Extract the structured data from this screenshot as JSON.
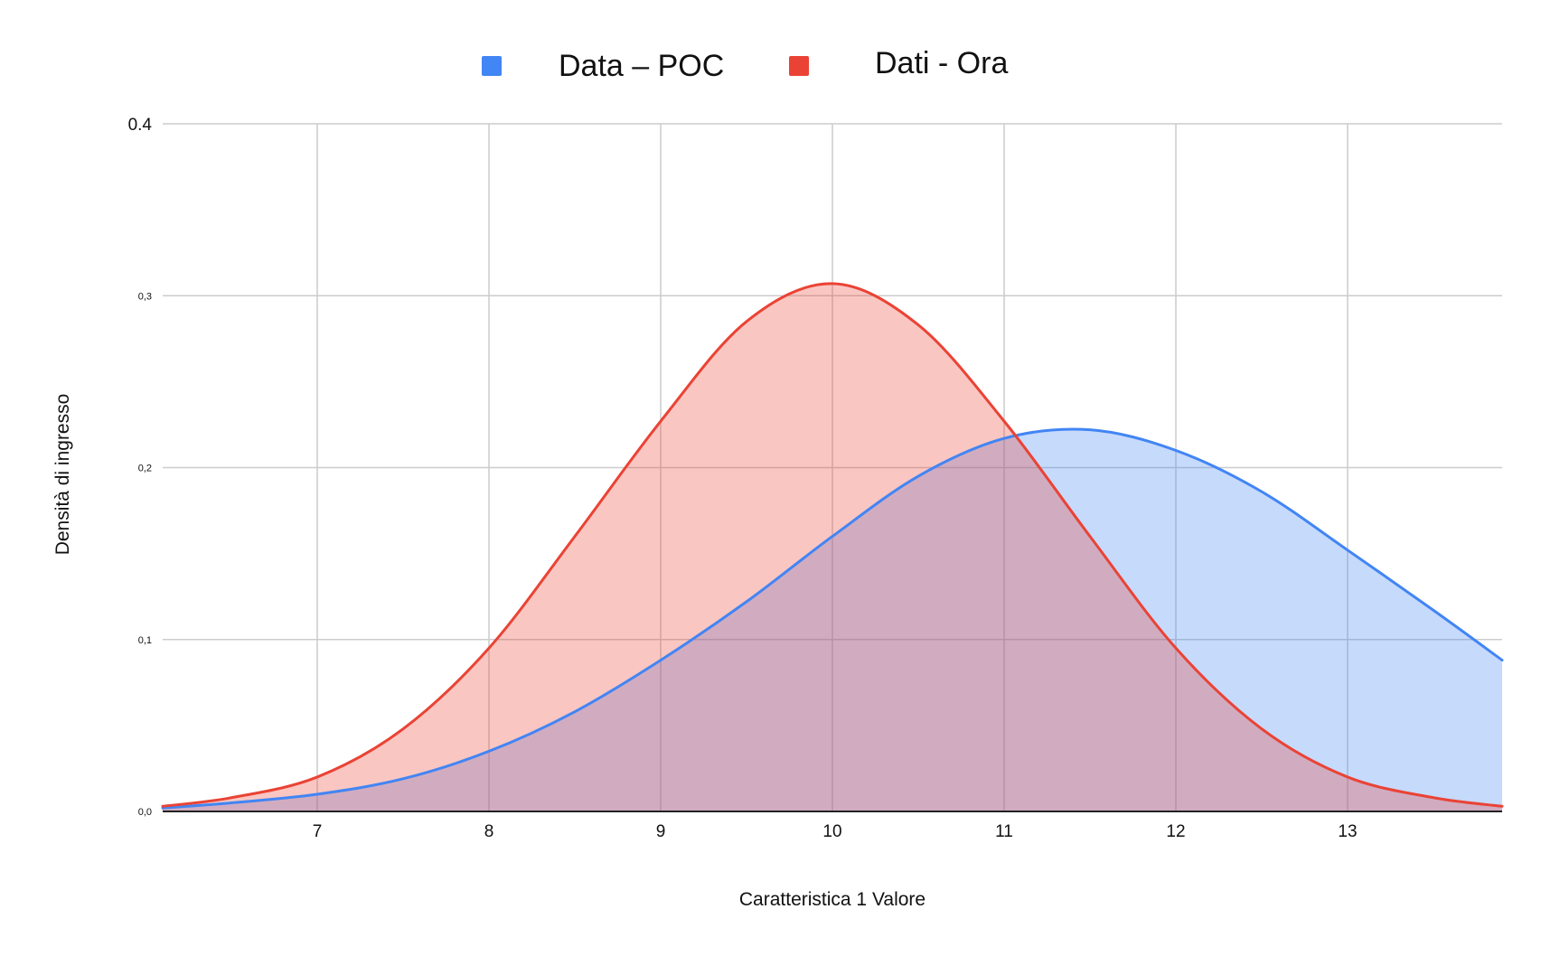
{
  "chart_data": {
    "type": "area",
    "xlabel": "Caratteristica 1 Valore",
    "ylabel": "Densità di ingresso",
    "xlim": [
      6.1,
      13.9
    ],
    "ylim": [
      0,
      0.4
    ],
    "x_ticks": [
      "7",
      "8",
      "9",
      "10",
      "11",
      "12",
      "13"
    ],
    "y_ticks": [
      "0,0",
      "0,1",
      "0,2",
      "0,3",
      "0.4"
    ],
    "grid": true,
    "legend_position": "top-center",
    "x": [
      6.1,
      6.5,
      7,
      7.5,
      8,
      8.5,
      9,
      9.5,
      10,
      10.5,
      11,
      11.5,
      12,
      12.5,
      13,
      13.5,
      13.9
    ],
    "series": [
      {
        "name": "Data – POC",
        "color": "#4285f4",
        "fill": "#c5d9f9",
        "values": [
          0.002,
          0.005,
          0.01,
          0.019,
          0.035,
          0.058,
          0.088,
          0.122,
          0.16,
          0.195,
          0.217,
          0.222,
          0.21,
          0.186,
          0.152,
          0.117,
          0.088
        ]
      },
      {
        "name": "Dati - Ora",
        "color": "#ea4335",
        "fill": "#f7c4c0",
        "values": [
          0.003,
          0.008,
          0.02,
          0.048,
          0.095,
          0.16,
          0.227,
          0.285,
          0.307,
          0.283,
          0.227,
          0.16,
          0.095,
          0.048,
          0.02,
          0.008,
          0.003
        ]
      }
    ]
  }
}
